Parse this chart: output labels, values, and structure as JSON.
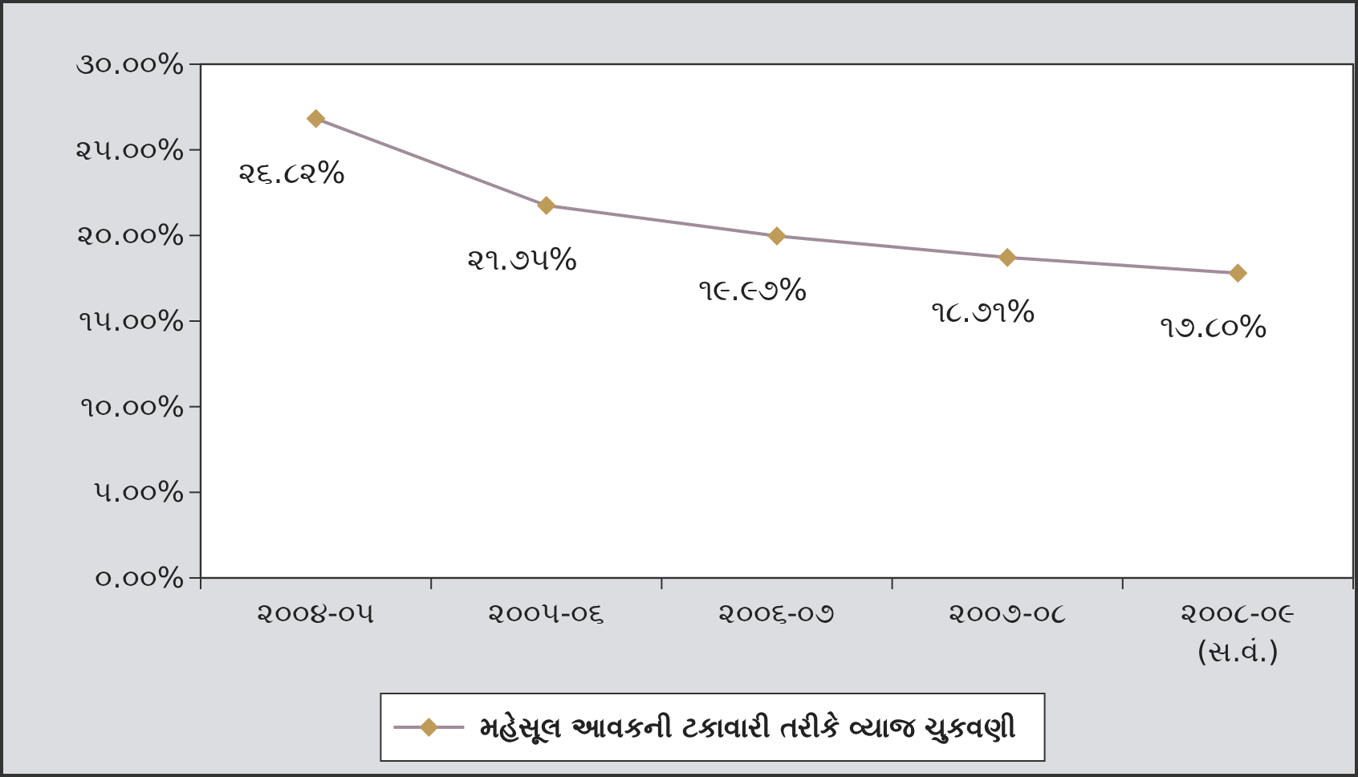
{
  "chart_data": {
    "type": "line",
    "categories": [
      "૨૦૦૪-૦૫",
      "૨૦૦૫-૦૬",
      "૨૦૦૬-૦૭",
      "૨૦૦૭-૦૮",
      "૨૦૦૮-૦૯ (સ.વં.)"
    ],
    "series": [
      {
        "name": "મહેસૂલ આવકની ટકાવારી તરીકે વ્યાજ ચુકવણી",
        "color": "#a08c9a",
        "values": [
          26.82,
          21.75,
          19.97,
          18.71,
          17.8
        ],
        "value_labels": [
          "૨૬.૮૨%",
          "૨૧.૭૫%",
          "૧૯.૯૭%",
          "૧૮.૭૧%",
          "૧૭.૮૦%"
        ]
      }
    ],
    "ylim": [
      0,
      30
    ],
    "yticks": [
      {
        "value": 0,
        "label": "૦.૦૦%"
      },
      {
        "value": 5,
        "label": "૫.૦૦%"
      },
      {
        "value": 10,
        "label": "૧૦.૦૦%"
      },
      {
        "value": 15,
        "label": "૧૫.૦૦%"
      },
      {
        "value": 20,
        "label": "૨૦.૦૦%"
      },
      {
        "value": 25,
        "label": "૨૫.૦૦%"
      },
      {
        "value": 30,
        "label": "૩૦.૦૦%"
      }
    ],
    "marker": "diamond",
    "line_style": "solid",
    "grid": false,
    "legend": "bottom"
  }
}
